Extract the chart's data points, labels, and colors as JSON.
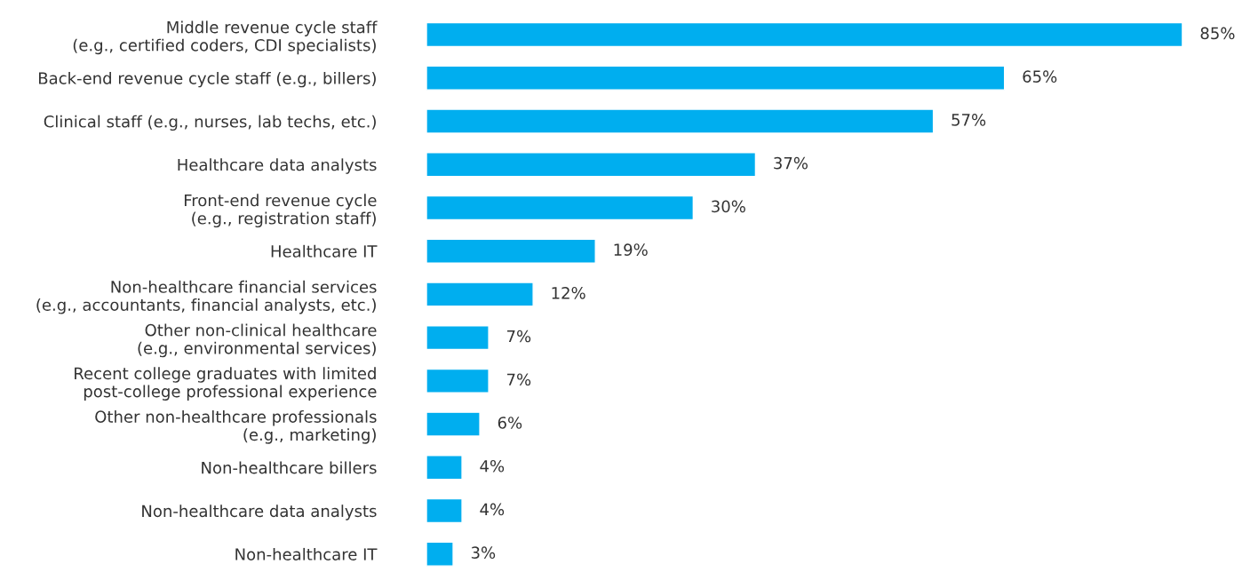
{
  "chart_data": {
    "type": "bar",
    "orientation": "horizontal",
    "categories": [
      "Middle revenue cycle staff\n(e.g., certified coders, CDI specialists)",
      "Back-end revenue cycle staff (e.g., billers)",
      "Clinical staff (e.g., nurses, lab techs, etc.)",
      "Healthcare data analysts",
      "Front-end revenue cycle\n(e.g., registration staff)",
      "Healthcare IT",
      "Non-healthcare financial services\n(e.g., accountants, financial analysts, etc.)",
      "Other non-clinical healthcare\n(e.g., environmental services)",
      "Recent college graduates with limited\npost-college professional experience",
      "Other non-healthcare professionals\n(e.g., marketing)",
      "Non-healthcare billers",
      "Non-healthcare data analysts",
      "Non-healthcare IT"
    ],
    "values": [
      85,
      65,
      57,
      37,
      30,
      19,
      12,
      7,
      7,
      6,
      4,
      4,
      3
    ],
    "value_labels": [
      "85%",
      "65%",
      "57%",
      "37%",
      "30%",
      "19%",
      "12%",
      "7%",
      "7%",
      "6%",
      "4%",
      "4%",
      "3%"
    ],
    "color": "#00aeef",
    "grid": false,
    "legend": false
  }
}
